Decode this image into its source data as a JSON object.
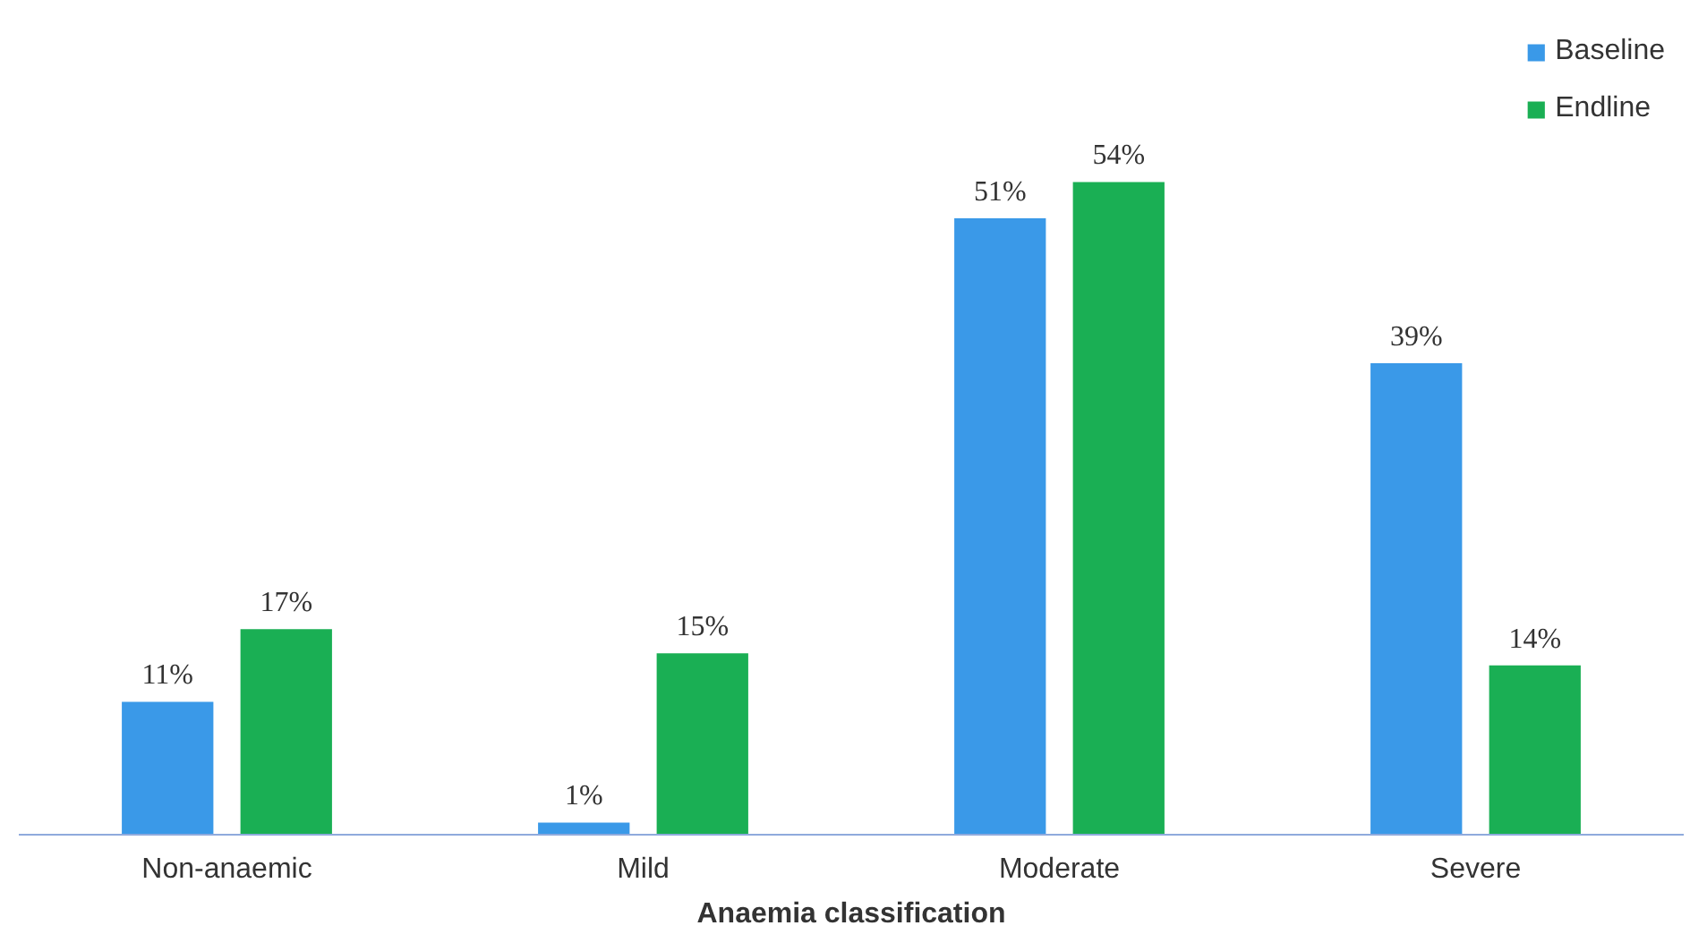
{
  "chart_data": {
    "type": "bar",
    "xlabel": "Anaemia classification",
    "categories": [
      "Non-anaemic",
      "Mild",
      "Moderate",
      "Severe"
    ],
    "series": [
      {
        "name": "Baseline",
        "color": "#3a99e8",
        "values": [
          11,
          1,
          51,
          39
        ],
        "value_labels": [
          "11%",
          "1%",
          "51%",
          "39%"
        ]
      },
      {
        "name": "Endline",
        "color": "#1aaf54",
        "values": [
          17,
          15,
          54,
          14
        ],
        "value_labels": [
          "17%",
          "15%",
          "54%",
          "14%"
        ]
      }
    ],
    "legend": "top right",
    "grid": false,
    "tick_labels": "x"
  }
}
